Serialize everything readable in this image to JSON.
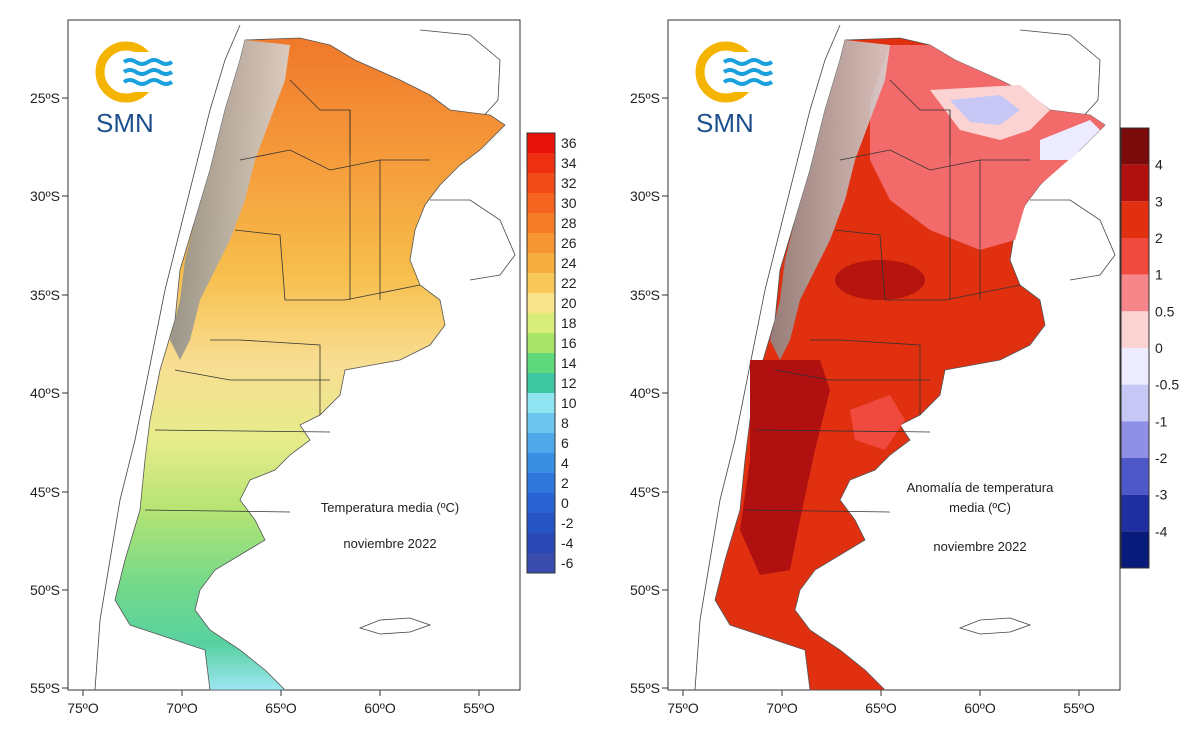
{
  "maps": [
    {
      "id": "temperatura",
      "logo": "SMN",
      "title_lines": [
        "Temperatura media (ºC)"
      ],
      "period": "noviembre 2022",
      "lat_labels": [
        "25ºS",
        "30ºS",
        "35ºS",
        "40ºS",
        "45ºS",
        "50ºS",
        "55ºS"
      ],
      "lon_labels": [
        "75ºO",
        "70ºO",
        "65ºO",
        "60ºO",
        "55ºO"
      ],
      "legend": {
        "labels": [
          "36",
          "34",
          "32",
          "30",
          "28",
          "26",
          "24",
          "22",
          "20",
          "18",
          "16",
          "14",
          "12",
          "10",
          "8",
          "6",
          "4",
          "2",
          "0",
          "-2",
          "-4",
          "-6"
        ],
        "colors": [
          "#e8130d",
          "#ee2f12",
          "#f24a18",
          "#f4641f",
          "#f57d28",
          "#f69633",
          "#f8ae3f",
          "#f9c85a",
          "#f8e28a",
          "#d9ee7a",
          "#a8e468",
          "#5fd97c",
          "#3ec7a0",
          "#8ee4f0",
          "#6cc5ef",
          "#4ea8ea",
          "#3b8fe3",
          "#2f77db",
          "#2a64d2",
          "#2754c3",
          "#2a49b5",
          "#3a4cae"
        ]
      }
    },
    {
      "id": "anomalia",
      "logo": "SMN",
      "title_lines": [
        "Anomalía de temperatura",
        "media (ºC)"
      ],
      "period": "noviembre 2022",
      "lat_labels": [
        "25ºS",
        "30ºS",
        "35ºS",
        "40ºS",
        "45ºS",
        "50ºS",
        "55ºS"
      ],
      "lon_labels": [
        "75ºO",
        "70ºO",
        "65ºO",
        "60ºO",
        "55ºO"
      ],
      "legend": {
        "labels": [
          "4",
          "3",
          "2",
          "1",
          "0.5",
          "0",
          "-0.5",
          "-1",
          "-2",
          "-3",
          "-4"
        ],
        "colors": [
          "#7b0b0b",
          "#b01010",
          "#e0300f",
          "#f04a3e",
          "#f7868a",
          "#fcd3d3",
          "#ecebff",
          "#c7c7f5",
          "#8f8fe6",
          "#4e58c9",
          "#1f2fa0",
          "#081a7a"
        ]
      }
    }
  ]
}
